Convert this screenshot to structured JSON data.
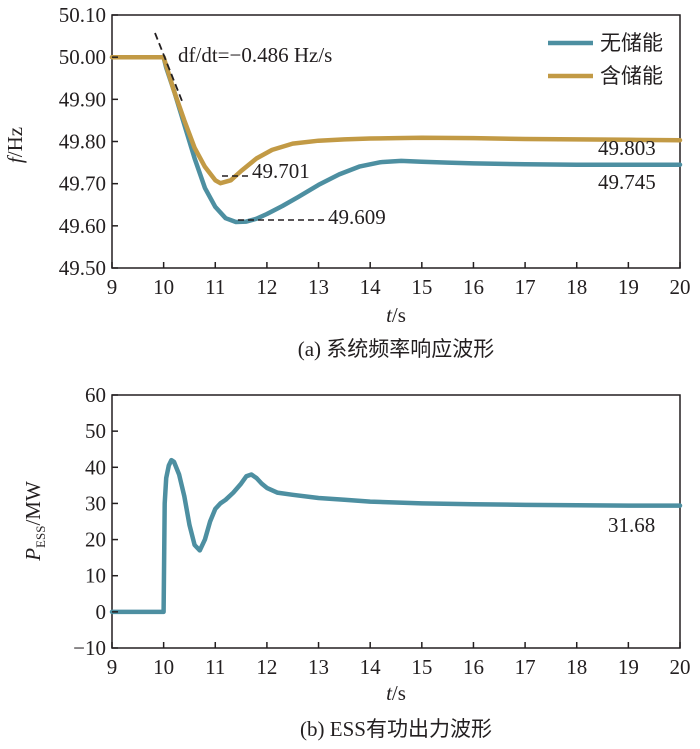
{
  "colors": {
    "no_storage": "#4d8fa1",
    "with_storage": "#c29a45",
    "ess": "#4d8fa1",
    "axis": "#231f20"
  },
  "chart_data": [
    {
      "type": "line",
      "caption": "(a) 系统频率响应波形",
      "xlabel": "t/s",
      "ylabel": "f/Hz",
      "xlim": [
        9,
        20
      ],
      "ylim": [
        49.5,
        50.1
      ],
      "xticks": [
        "9",
        "10",
        "11",
        "12",
        "13",
        "14",
        "15",
        "16",
        "17",
        "18",
        "19",
        "20"
      ],
      "yticks": [
        "50.10",
        "50.00",
        "49.90",
        "49.80",
        "49.70",
        "49.60",
        "49.50"
      ],
      "legend": {
        "position": "top-right",
        "entries": [
          "无储能",
          "含储能"
        ]
      },
      "series": [
        {
          "name": "无储能",
          "color": "#4d8fa1",
          "x": [
            9,
            10,
            10.05,
            10.2,
            10.4,
            10.6,
            10.8,
            11.0,
            11.2,
            11.4,
            11.6,
            11.8,
            12.0,
            12.3,
            12.6,
            13.0,
            13.4,
            13.8,
            14.2,
            14.6,
            15.0,
            15.5,
            16,
            17,
            18,
            19,
            20
          ],
          "y": [
            50.0,
            50.0,
            49.975,
            49.92,
            49.84,
            49.76,
            49.69,
            49.645,
            49.618,
            49.609,
            49.61,
            49.617,
            49.628,
            49.647,
            49.668,
            49.697,
            49.722,
            49.741,
            49.751,
            49.754,
            49.752,
            49.75,
            49.748,
            49.746,
            49.745,
            49.745,
            49.745
          ]
        },
        {
          "name": "含储能",
          "color": "#c29a45",
          "x": [
            9,
            10,
            10.05,
            10.2,
            10.4,
            10.6,
            10.8,
            11.0,
            11.1,
            11.3,
            11.5,
            11.8,
            12.1,
            12.5,
            13.0,
            13.5,
            14.0,
            14.5,
            15.0,
            16,
            17,
            18,
            19,
            20
          ],
          "y": [
            50.0,
            50.0,
            49.98,
            49.92,
            49.85,
            49.785,
            49.74,
            49.708,
            49.701,
            49.708,
            49.73,
            49.76,
            49.78,
            49.795,
            49.802,
            49.805,
            49.807,
            49.808,
            49.809,
            49.808,
            49.806,
            49.805,
            49.804,
            49.803
          ]
        }
      ],
      "annotations": [
        {
          "text": "df/dt=−0.486 Hz/s",
          "x": 10.25,
          "y": 50.0
        },
        {
          "text": "49.701",
          "x": 11.7,
          "y": 49.713
        },
        {
          "text": "49.609",
          "x": 12.6,
          "y": 49.597
        },
        {
          "text": "49.803",
          "x": 19.4,
          "y": 49.815
        },
        {
          "text": "49.745",
          "x": 19.4,
          "y": 49.722
        }
      ]
    },
    {
      "type": "line",
      "caption": "(b) ESS有功出力波形",
      "xlabel": "t/s",
      "ylabel_main": "P",
      "ylabel_sub": "ESS",
      "ylabel_unit": "/MW",
      "xlim": [
        9,
        20
      ],
      "ylim": [
        -10,
        60
      ],
      "xticks": [
        "9",
        "10",
        "11",
        "12",
        "13",
        "14",
        "15",
        "16",
        "17",
        "18",
        "19",
        "20"
      ],
      "yticks": [
        "60",
        "50",
        "40",
        "30",
        "20",
        "10",
        "0",
        "−10"
      ],
      "series": [
        {
          "color": "#4d8fa1",
          "x": [
            9,
            10.0,
            10.02,
            10.05,
            10.1,
            10.15,
            10.2,
            10.3,
            10.4,
            10.5,
            10.6,
            10.7,
            10.8,
            10.9,
            11.0,
            11.1,
            11.2,
            11.35,
            11.5,
            11.6,
            11.7,
            11.8,
            11.9,
            12.0,
            12.2,
            12.5,
            13.0,
            13.5,
            14.0,
            15.0,
            16.0,
            17.0,
            18.0,
            19.0,
            20.0
          ],
          "y": [
            0,
            0,
            30,
            37,
            40.5,
            42,
            41.5,
            38,
            32,
            24,
            18.5,
            17,
            20,
            25,
            28.5,
            30,
            31,
            33,
            35.5,
            37.5,
            38,
            37,
            35.5,
            34.3,
            33,
            32.4,
            31.5,
            31,
            30.5,
            30,
            29.8,
            29.6,
            29.5,
            29.4,
            29.4
          ]
        }
      ],
      "annotations": [
        {
          "text": "31.68",
          "x": 18.8,
          "y": 23
        }
      ]
    }
  ]
}
